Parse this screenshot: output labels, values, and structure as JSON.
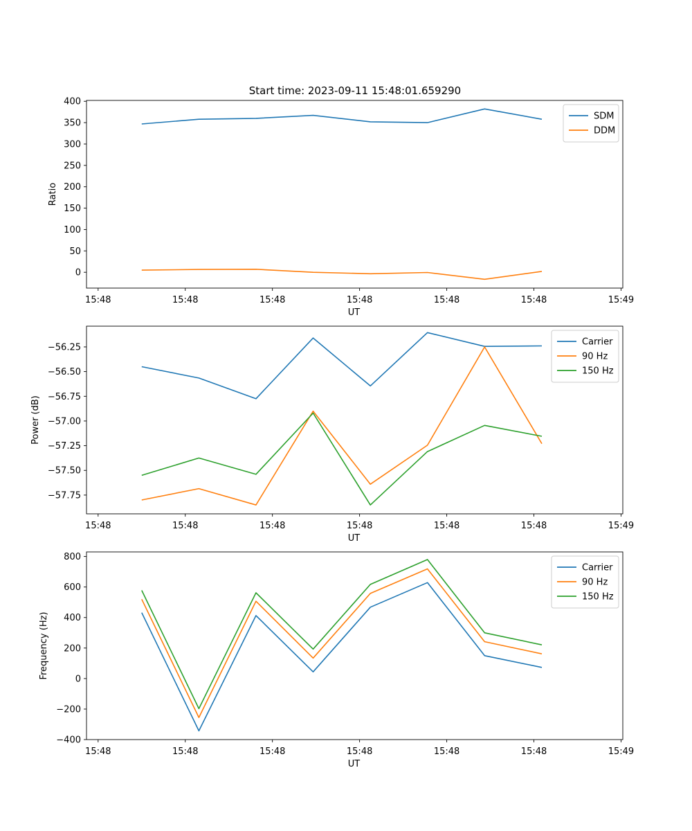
{
  "title": "Start time: 2023-09-11 15:48:01.659290",
  "colors": {
    "blue": "#1f77b4",
    "orange": "#ff7f0e",
    "green": "#2ca02c"
  },
  "chart_data": [
    {
      "type": "line",
      "ylabel": "Ratio",
      "xlabel": "UT",
      "xticks": [
        "15:48",
        "15:48",
        "15:48",
        "15:48",
        "15:48",
        "15:48",
        "15:49"
      ],
      "yticks": [
        "400",
        "350",
        "300",
        "250",
        "200",
        "150",
        "100",
        "50",
        "0"
      ],
      "ytick_values": [
        400,
        350,
        300,
        250,
        200,
        150,
        100,
        50,
        0
      ],
      "ylim": [
        -37,
        402
      ],
      "legend_position": "upper right",
      "series": [
        {
          "name": "SDM",
          "color": "#1f77b4",
          "values": [
            347,
            358,
            360,
            367,
            352,
            350,
            382,
            358
          ]
        },
        {
          "name": "DDM",
          "color": "#ff7f0e",
          "values": [
            5,
            6.5,
            7,
            0,
            -3.5,
            -0.5,
            -16.5,
            2
          ]
        }
      ]
    },
    {
      "type": "line",
      "ylabel": "Power (dB)",
      "xlabel": "UT",
      "xticks": [
        "15:48",
        "15:48",
        "15:48",
        "15:48",
        "15:48",
        "15:48",
        "15:49"
      ],
      "yticks": [
        "−56.25",
        "−56.50",
        "−56.75",
        "−57.00",
        "−57.25",
        "−57.50",
        "−57.75"
      ],
      "ytick_values": [
        -56.25,
        -56.5,
        -56.75,
        -57.0,
        -57.25,
        -57.5,
        -57.75
      ],
      "ylim": [
        -57.94,
        -56.04
      ],
      "legend_position": "upper right",
      "series": [
        {
          "name": "Carrier",
          "color": "#1f77b4",
          "values": [
            -56.45,
            -56.565,
            -56.775,
            -56.16,
            -56.645,
            -56.105,
            -56.245,
            -56.24
          ]
        },
        {
          "name": "90 Hz",
          "color": "#ff7f0e",
          "values": [
            -57.8,
            -57.685,
            -57.85,
            -56.9,
            -57.64,
            -57.245,
            -56.25,
            -57.23
          ]
        },
        {
          "name": "150 Hz",
          "color": "#2ca02c",
          "values": [
            -57.55,
            -57.375,
            -57.54,
            -56.92,
            -57.85,
            -57.31,
            -57.045,
            -57.155
          ]
        }
      ]
    },
    {
      "type": "line",
      "ylabel": "Frequency (Hz)",
      "xlabel": "UT",
      "xticks": [
        "15:48",
        "15:48",
        "15:48",
        "15:48",
        "15:48",
        "15:48",
        "15:49"
      ],
      "yticks": [
        "800",
        "600",
        "400",
        "200",
        "0",
        "−200",
        "−400"
      ],
      "ytick_values": [
        800,
        600,
        400,
        200,
        0,
        -200,
        -400
      ],
      "ylim": [
        -400,
        830
      ],
      "legend_position": "upper right",
      "series": [
        {
          "name": "Carrier",
          "color": "#1f77b4",
          "values": [
            432,
            -343,
            413,
            44,
            468,
            629,
            150,
            73
          ]
        },
        {
          "name": "90 Hz",
          "color": "#ff7f0e",
          "values": [
            520,
            -255,
            507,
            134,
            558,
            719,
            242,
            162
          ]
        },
        {
          "name": "150 Hz",
          "color": "#2ca02c",
          "values": [
            578,
            -197,
            562,
            193,
            617,
            780,
            300,
            221
          ]
        }
      ]
    }
  ]
}
